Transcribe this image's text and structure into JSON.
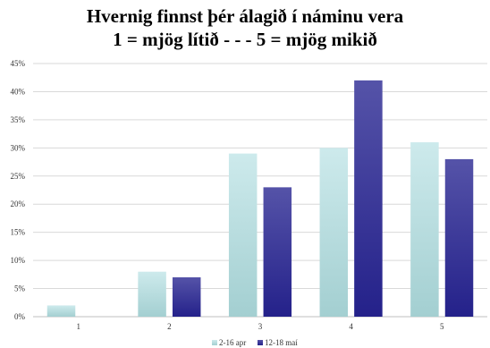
{
  "chart_data": {
    "type": "bar",
    "title": [
      "Hvernig finnst þér álagið í náminu vera",
      "1 = mjög lítið  - - -  5 = mjög mikið"
    ],
    "categories": [
      "1",
      "2",
      "3",
      "4",
      "5"
    ],
    "series": [
      {
        "name": "2-16 apr",
        "values": [
          2,
          8,
          29,
          30,
          31
        ],
        "color_top": "#cdeaec",
        "color_bottom": "#a3cfd1"
      },
      {
        "name": "12-18 maí",
        "values": [
          0,
          7,
          23,
          42,
          28
        ],
        "color_top": "#5553a8",
        "color_bottom": "#24218a"
      }
    ],
    "ylim": [
      0,
      45
    ],
    "yticks": [
      "0%",
      "5%",
      "10%",
      "15%",
      "20%",
      "25%",
      "30%",
      "35%",
      "40%",
      "45%"
    ],
    "grid": true,
    "legend_position": "bottom"
  }
}
